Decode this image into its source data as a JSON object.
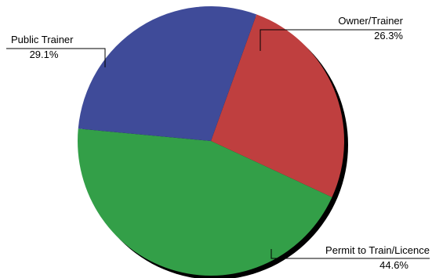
{
  "chart_data": {
    "type": "pie",
    "slices": [
      {
        "label": "Owner/Trainer",
        "value": 26.3,
        "value_label": "26.3%",
        "color": "#bf3f3f"
      },
      {
        "label": "Permit to Train/Licence",
        "value": 44.6,
        "value_label": "44.6%",
        "color": "#339f48"
      },
      {
        "label": "Public Trainer",
        "value": 29.1,
        "value_label": "29.1%",
        "color": "#3f4b99"
      }
    ],
    "shadow_color": "#000000",
    "legend": "none"
  }
}
